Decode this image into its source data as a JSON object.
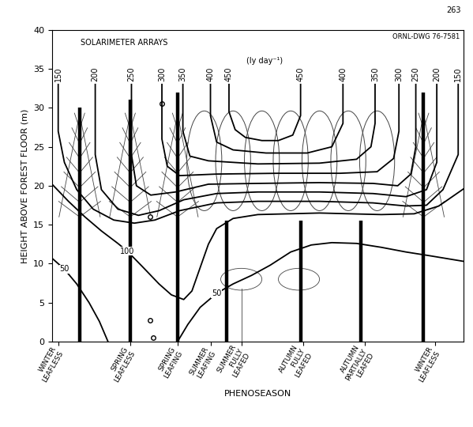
{
  "chart_data": {
    "type": "line",
    "page_number": "263",
    "drawing_id": "ORNL-DWG 76-7581",
    "annotation": "SOLARIMETER ARRAYS",
    "unit_label": "(ly day⁻¹)",
    "x_label": "PHENOSEASON",
    "y_label": "HEIGHT ABOVE FOREST FLOOR (m)",
    "xlim": [
      0,
      100
    ],
    "xticks": [
      {
        "value": 1.5,
        "label": "WINTER\nLEAFLESS"
      },
      {
        "value": 19,
        "label": "SPRING\nLEAFLESS"
      },
      {
        "value": 30.5,
        "label": "SPRING\nLEAFING"
      },
      {
        "value": 38.5,
        "label": "SUMMER\nLEAFING"
      },
      {
        "value": 46,
        "label": "SUMMER\nFULLY\nLEAFED"
      },
      {
        "value": 61,
        "label": "AUTUMN\nFULLY\nLEAFED"
      },
      {
        "value": 76,
        "label": "AUTUMN\nPARTIALLY\nLEAFED"
      },
      {
        "value": 93,
        "label": "WINTER\nLEAFLESS"
      }
    ],
    "ylim": [
      0,
      40
    ],
    "yticks": [
      0,
      5,
      10,
      15,
      20,
      25,
      30,
      35,
      40
    ],
    "grid": false,
    "series": [
      {
        "name": "150",
        "color": "#000000",
        "x": [
          1.5,
          1.5,
          3,
          6,
          10,
          15,
          20,
          25,
          31,
          40,
          50,
          65,
          78,
          86,
          91,
          95,
          98.7,
          98.7
        ],
        "y": [
          33,
          27,
          23,
          19.5,
          17,
          15.6,
          15.2,
          15.6,
          16.8,
          17.8,
          18,
          18,
          17.8,
          17.4,
          17.5,
          19.5,
          24,
          33
        ]
      },
      {
        "name": "200",
        "color": "#000000",
        "x": [
          10.5,
          10.5,
          12,
          16,
          21,
          26,
          32,
          40,
          50,
          65,
          78,
          86,
          91,
          93.5,
          93.5
        ],
        "y": [
          33,
          24,
          19.5,
          17,
          16.2,
          16.8,
          18.2,
          19,
          19.2,
          19.2,
          19,
          18.6,
          19.5,
          23,
          33
        ]
      },
      {
        "name": "250",
        "color": "#000000",
        "x": [
          19.3,
          19.3,
          20.5,
          24,
          30,
          38,
          50,
          65,
          78,
          84,
          87.2,
          88.4,
          88.4
        ],
        "y": [
          33,
          24,
          20,
          18.8,
          19.2,
          20.2,
          20.3,
          20.4,
          20.3,
          20,
          21.5,
          25,
          33
        ]
      },
      {
        "name": "300",
        "color": "#000000",
        "x": [
          26.7,
          26.7,
          28,
          31,
          40,
          55,
          70,
          79,
          83,
          84.3,
          84.3
        ],
        "y": [
          33,
          26,
          22.5,
          21.3,
          21.5,
          21.6,
          21.6,
          21.8,
          23.5,
          27,
          33
        ]
      },
      {
        "name": "350",
        "color": "#000000",
        "x": [
          31.8,
          31.8,
          33.5,
          38,
          50,
          65,
          74,
          77.5,
          78.5,
          78.5
        ],
        "y": [
          33,
          27,
          23.8,
          23.2,
          22.8,
          22.9,
          23.4,
          25,
          28,
          33
        ]
      },
      {
        "name": "400",
        "color": "#000000",
        "x": [
          38.5,
          38.5,
          40,
          44,
          52,
          62,
          68,
          70.7,
          70.7
        ],
        "y": [
          33,
          29,
          25.6,
          24.6,
          24.2,
          24.2,
          25,
          28,
          33
        ]
      },
      {
        "name": "450",
        "color": "#000000",
        "x": [
          43,
          43,
          44.5,
          47,
          51,
          55,
          58.5,
          60.4,
          60.4
        ],
        "y": [
          33,
          29.5,
          27.2,
          26.2,
          25.8,
          25.8,
          26.5,
          29,
          33
        ]
      },
      {
        "name": "100",
        "color": "#000000",
        "x": [
          0,
          4,
          8,
          12,
          16,
          18.3,
          22,
          26,
          29,
          32,
          34,
          36,
          38,
          40,
          44,
          50,
          65,
          80,
          88,
          94,
          100
        ],
        "y": [
          20.2,
          18,
          16,
          14.2,
          12.6,
          11.6,
          9.6,
          7.4,
          6,
          5.4,
          6.5,
          9.5,
          12.5,
          14.5,
          15.8,
          16.3,
          16.5,
          16.3,
          16.4,
          17.4,
          19.6
        ]
      },
      {
        "name": "50",
        "color": "#000000",
        "x": [
          0,
          3,
          6,
          9,
          11.5,
          13.6
        ],
        "y": [
          10.7,
          9.3,
          7.4,
          5,
          2.6,
          0
        ]
      },
      {
        "name": "50",
        "color": "#000000",
        "x": [
          30.5,
          33,
          36,
          40,
          44,
          48.5,
          53,
          58,
          63,
          68,
          74,
          80,
          86,
          92,
          100
        ],
        "y": [
          0,
          2.2,
          4.4,
          6.2,
          7.4,
          8.5,
          9.8,
          11.5,
          12.4,
          12.7,
          12.6,
          12.1,
          11.5,
          11,
          10.3
        ]
      }
    ],
    "solarimeter_arrays": {
      "x": [
        6.7,
        19,
        30.5,
        42.5,
        60.5,
        75,
        90.3
      ],
      "height": [
        30,
        31,
        32,
        15.5,
        15.5,
        15.5,
        32
      ]
    },
    "sensors": {
      "x": [
        26.7,
        23.9,
        23.9,
        24.5
      ],
      "y": [
        30.5,
        16,
        2.7,
        0.5
      ]
    }
  }
}
